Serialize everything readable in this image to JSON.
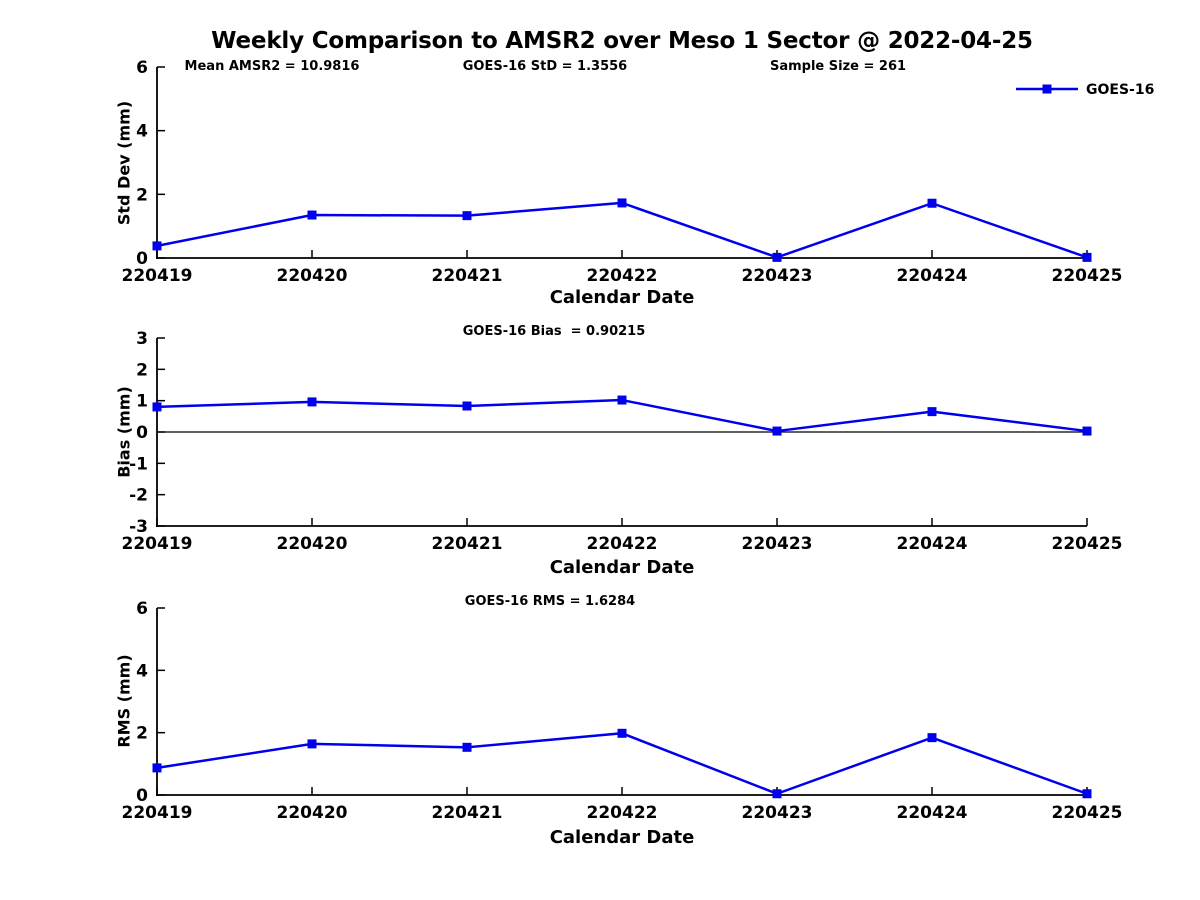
{
  "title": "Weekly Comparison to AMSR2 over Meso 1 Sector @ 2022-04-25",
  "colors": {
    "line": "#0000ee",
    "axis": "#000000",
    "background": "#ffffff"
  },
  "chart_data": [
    {
      "type": "line",
      "title": "",
      "categories": [
        "220419",
        "220420",
        "220421",
        "220422",
        "220423",
        "220424",
        "220425"
      ],
      "series": [
        {
          "name": "GOES-16",
          "color": "#0000ee",
          "marker": "square",
          "values": [
            0.38,
            1.35,
            1.33,
            1.73,
            0.02,
            1.72,
            0.02
          ]
        }
      ],
      "xlabel": "Calendar Date",
      "ylabel": "Std Dev (mm)",
      "ylim": [
        0,
        6
      ],
      "yticks": [
        0,
        2,
        4,
        6
      ],
      "grid": false,
      "zero_line": false,
      "legend": [
        "GOES-16"
      ],
      "legend_position": "top-right",
      "annotations": [
        "Mean AMSR2 = 10.9816",
        "GOES-16 StD = 1.3556",
        "Sample Size = 261"
      ]
    },
    {
      "type": "line",
      "title": "GOES-16 Bias  = 0.90215",
      "categories": [
        "220419",
        "220420",
        "220421",
        "220422",
        "220423",
        "220424",
        "220425"
      ],
      "series": [
        {
          "name": "GOES-16",
          "color": "#0000ee",
          "marker": "square",
          "values": [
            0.8,
            0.96,
            0.83,
            1.02,
            0.03,
            0.65,
            0.03
          ]
        }
      ],
      "xlabel": "Calendar Date",
      "ylabel": "Bias (mm)",
      "ylim": [
        -3,
        3
      ],
      "yticks": [
        -3,
        -2,
        -1,
        0,
        1,
        2,
        3
      ],
      "grid": false,
      "zero_line": true,
      "legend": [],
      "legend_position": "none",
      "annotations": []
    },
    {
      "type": "line",
      "title": "GOES-16 RMS = 1.6284",
      "categories": [
        "220419",
        "220420",
        "220421",
        "220422",
        "220423",
        "220424",
        "220425"
      ],
      "series": [
        {
          "name": "GOES-16",
          "color": "#0000ee",
          "marker": "square",
          "values": [
            0.87,
            1.64,
            1.53,
            1.98,
            0.04,
            1.84,
            0.04
          ]
        }
      ],
      "xlabel": "Calendar Date",
      "ylabel": "RMS (mm)",
      "ylim": [
        0,
        6
      ],
      "yticks": [
        0,
        2,
        4,
        6
      ],
      "grid": false,
      "zero_line": false,
      "legend": [],
      "legend_position": "none",
      "annotations": []
    }
  ]
}
